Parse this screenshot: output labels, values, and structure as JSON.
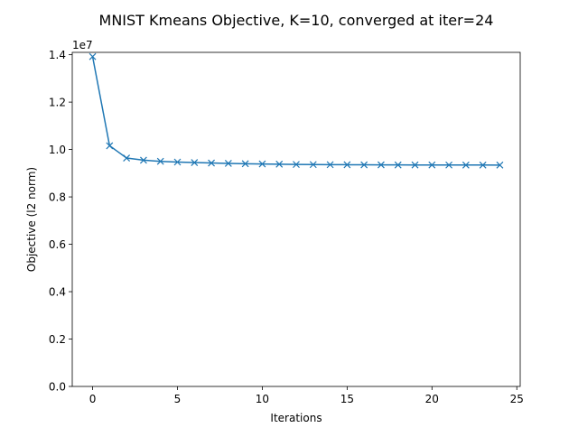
{
  "chart_data": {
    "type": "line",
    "title": "MNIST Kmeans Objective, K=10, converged at iter=24",
    "xlabel": "Iterations",
    "ylabel": "Objective (l2 norm)",
    "y_scale_label": "1e7",
    "xlim": [
      -1.2,
      25.2
    ],
    "ylim": [
      0.0,
      14100000
    ],
    "x_ticks": [
      0,
      5,
      10,
      15,
      20,
      25
    ],
    "x_tick_labels": [
      "0",
      "5",
      "10",
      "15",
      "20",
      "25"
    ],
    "y_ticks": [
      0,
      2000000,
      4000000,
      6000000,
      8000000,
      10000000,
      12000000,
      14000000
    ],
    "y_tick_labels": [
      "0.0",
      "0.2",
      "0.4",
      "0.6",
      "0.8",
      "1.0",
      "1.2",
      "1.4"
    ],
    "grid": false,
    "series": [
      {
        "color": "#1f77b4",
        "marker": "x",
        "x": [
          0,
          1,
          2,
          3,
          4,
          5,
          6,
          7,
          8,
          9,
          10,
          11,
          12,
          13,
          14,
          15,
          16,
          17,
          18,
          19,
          20,
          21,
          22,
          23,
          24
        ],
        "values": [
          13920000,
          10160000,
          9640000,
          9550000,
          9500000,
          9470000,
          9450000,
          9430000,
          9415000,
          9400000,
          9390000,
          9380000,
          9370000,
          9365000,
          9360000,
          9358000,
          9355000,
          9352000,
          9350000,
          9348000,
          9347000,
          9346000,
          9345000,
          9344000,
          9343000
        ]
      }
    ]
  }
}
